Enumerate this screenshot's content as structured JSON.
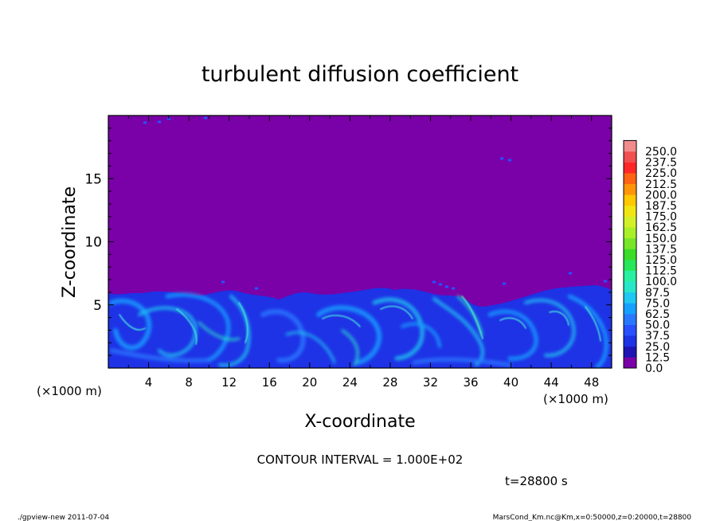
{
  "chart_data": {
    "type": "heatmap",
    "title": "turbulent diffusion coefficient",
    "xlabel": "X-coordinate",
    "ylabel": "Z-coordinate",
    "x_unit": "(×1000 m)",
    "x_unit_right": "(×1000 m)",
    "xlim": [
      0,
      50
    ],
    "ylim": [
      0,
      20
    ],
    "x_ticks": [
      4,
      8,
      12,
      16,
      20,
      24,
      28,
      32,
      36,
      40,
      44,
      48
    ],
    "y_ticks": [
      5,
      10,
      15
    ],
    "colorbar": {
      "levels": [
        "0.0",
        "12.5",
        "25.0",
        "37.5",
        "50.0",
        "62.5",
        "75.0",
        "87.5",
        "100.0",
        "112.5",
        "125.0",
        "137.5",
        "150.0",
        "162.5",
        "175.0",
        "187.5",
        "200.0",
        "212.5",
        "225.0",
        "237.5",
        "250.0"
      ],
      "colors": [
        "#7a00a8",
        "#1e14b4",
        "#1e32e6",
        "#2850ff",
        "#2878ff",
        "#14a0ff",
        "#1ec8f0",
        "#28e6c8",
        "#28f0a0",
        "#28e65a",
        "#3cdc28",
        "#78e628",
        "#aaf028",
        "#d2f028",
        "#f0e614",
        "#ffc800",
        "#ff960a",
        "#ff6414",
        "#ff2828",
        "#f05050",
        "#f08c8c"
      ]
    },
    "contour_interval": "CONTOUR INTERVAL = 1.000E+02",
    "time_label": "t=28800 s",
    "footer_left": "./gpview-new  2011-07-04",
    "footer_right": "MarsCond_Km.nc@Km,x=0:50000,z=0:20000,t=28800"
  }
}
